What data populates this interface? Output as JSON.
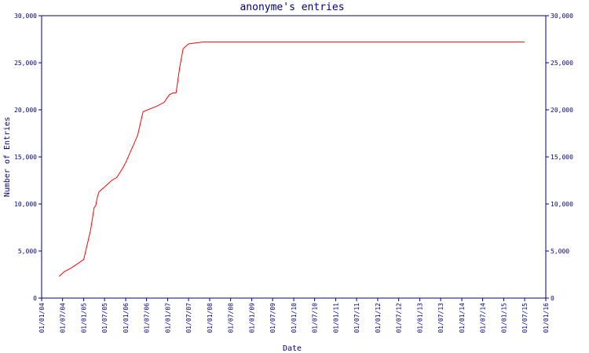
{
  "chart_data": {
    "type": "line",
    "title": "anonyme's entries",
    "xlabel": "Date",
    "ylabel": "Number of Entries",
    "ylim": [
      0,
      30000
    ],
    "yticks": [
      0,
      5000,
      10000,
      15000,
      20000,
      25000,
      30000
    ],
    "ytick_labels": [
      "0",
      "5,000",
      "10,000",
      "15,000",
      "20,000",
      "25,000",
      "30,000"
    ],
    "xlim": [
      "2004-01-01",
      "2016-01-01"
    ],
    "xtick_dates": [
      "2004-01-01",
      "2004-07-01",
      "2005-01-01",
      "2005-07-01",
      "2006-01-01",
      "2006-07-01",
      "2007-01-01",
      "2007-07-01",
      "2008-01-01",
      "2008-07-01",
      "2009-01-01",
      "2009-07-01",
      "2010-01-01",
      "2010-07-01",
      "2011-01-01",
      "2011-07-01",
      "2012-01-01",
      "2012-07-01",
      "2013-01-01",
      "2013-07-01",
      "2014-01-01",
      "2014-07-01",
      "2015-01-01",
      "2015-07-01",
      "2016-01-01"
    ],
    "xtick_labels": [
      "01/01/04",
      "01/07/04",
      "01/01/05",
      "01/07/05",
      "01/01/06",
      "01/07/06",
      "01/01/07",
      "01/07/07",
      "01/01/08",
      "01/07/08",
      "01/01/09",
      "01/07/09",
      "01/01/10",
      "01/07/10",
      "01/01/11",
      "01/07/11",
      "01/01/12",
      "01/07/12",
      "01/01/13",
      "01/07/13",
      "01/01/14",
      "01/07/14",
      "01/01/15",
      "01/07/15",
      "01/01/16"
    ],
    "grid": false,
    "line_color": "#ff0000",
    "axis_color": "#000080",
    "series": [
      {
        "x": [
          "2004-06-01",
          "2004-07-15",
          "2004-09-15",
          "2004-11-15",
          "2005-01-01",
          "2005-03-01",
          "2005-04-01",
          "2005-04-15",
          "2005-05-01",
          "2005-05-15",
          "2005-07-01",
          "2005-09-01",
          "2005-10-15",
          "2005-12-01",
          "2006-01-01",
          "2006-04-15",
          "2006-06-01",
          "2006-10-01",
          "2006-12-01",
          "2007-01-15",
          "2007-02-01",
          "2007-02-15",
          "2007-03-15",
          "2007-04-15",
          "2007-05-15",
          "2007-07-01",
          "2007-09-01",
          "2007-11-01",
          "2008-06-01",
          "2010-01-01",
          "2012-01-01",
          "2014-01-01",
          "2015-07-01"
        ],
        "y": [
          2300,
          2800,
          3200,
          3700,
          4100,
          7200,
          9600,
          9800,
          10800,
          11300,
          11800,
          12500,
          12800,
          13700,
          14400,
          17300,
          19800,
          20400,
          20800,
          21600,
          21700,
          21800,
          21800,
          24500,
          26500,
          27000,
          27100,
          27200,
          27200,
          27200,
          27200,
          27200,
          27200
        ]
      }
    ]
  }
}
